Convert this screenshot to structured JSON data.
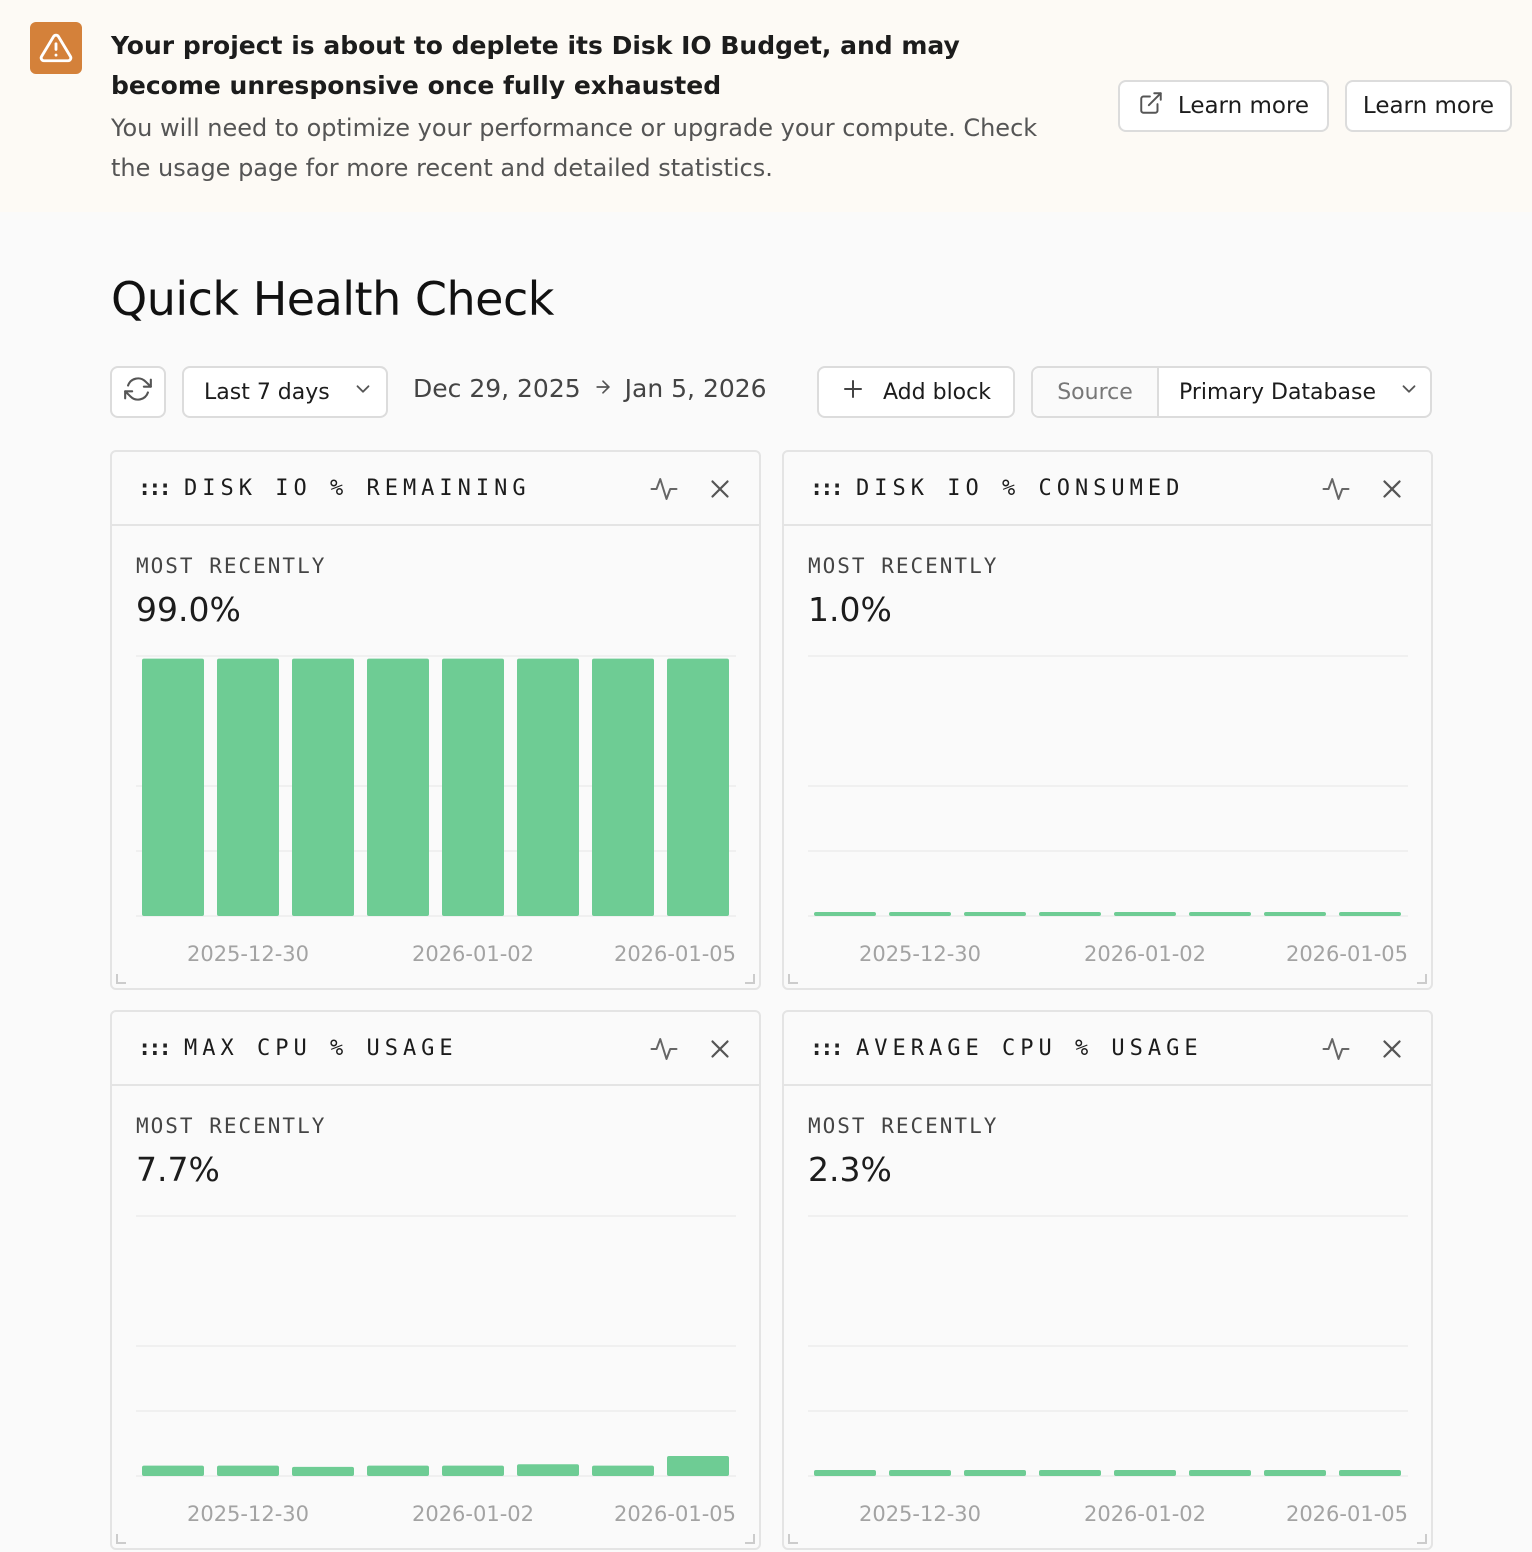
{
  "banner": {
    "title": "Your project is about to deplete its Disk IO Budget, and may become unresponsive once fully exhausted",
    "body": "You will need to optimize your performance or upgrade your compute. Check the usage page for more recent and detailed statistics.",
    "learn_more_1": "Learn more",
    "learn_more_2": "Learn more",
    "accent": "#d4813a"
  },
  "page": {
    "title": "Quick Health Check"
  },
  "toolbar": {
    "range_label": "Last 7 days",
    "date_start": "Dec 29, 2025",
    "date_end": "Jan 5, 2026",
    "add_block": "Add block",
    "source_label": "Source",
    "source_value": "Primary Database"
  },
  "cards": [
    {
      "title": "DISK IO % REMAINING",
      "caption": "MOST RECENTLY",
      "value": "99.0%"
    },
    {
      "title": "DISK IO % CONSUMED",
      "caption": "MOST RECENTLY",
      "value": "1.0%"
    },
    {
      "title": "MAX CPU % USAGE",
      "caption": "MOST RECENTLY",
      "value": "7.7%"
    },
    {
      "title": "AVERAGE CPU % USAGE",
      "caption": "MOST RECENTLY",
      "value": "2.3%"
    }
  ],
  "chart_data": [
    {
      "type": "bar",
      "x": [
        "2025-12-29",
        "2025-12-30",
        "2025-12-31",
        "2026-01-01",
        "2026-01-02",
        "2026-01-03",
        "2026-01-04",
        "2026-01-05"
      ],
      "values": [
        99,
        99,
        99,
        99,
        99,
        99,
        99,
        99
      ],
      "ylim": [
        0,
        100
      ],
      "ticks": [
        "2025-12-30",
        "2026-01-02",
        "2026-01-05"
      ],
      "color": "#6ecc94"
    },
    {
      "type": "bar",
      "x": [
        "2025-12-29",
        "2025-12-30",
        "2025-12-31",
        "2026-01-01",
        "2026-01-02",
        "2026-01-03",
        "2026-01-04",
        "2026-01-05"
      ],
      "values": [
        1,
        1,
        1,
        1,
        1,
        1,
        1,
        1
      ],
      "ylim": [
        0,
        100
      ],
      "ticks": [
        "2025-12-30",
        "2026-01-02",
        "2026-01-05"
      ],
      "color": "#6ecc94"
    },
    {
      "type": "bar",
      "x": [
        "2025-12-29",
        "2025-12-30",
        "2025-12-31",
        "2026-01-01",
        "2026-01-02",
        "2026-01-03",
        "2026-01-04",
        "2026-01-05"
      ],
      "values": [
        4,
        4,
        3.5,
        4,
        4,
        4.5,
        4,
        7.7
      ],
      "ylim": [
        0,
        100
      ],
      "ticks": [
        "2025-12-30",
        "2026-01-02",
        "2026-01-05"
      ],
      "color": "#6ecc94"
    },
    {
      "type": "bar",
      "x": [
        "2025-12-29",
        "2025-12-30",
        "2025-12-31",
        "2026-01-01",
        "2026-01-02",
        "2026-01-03",
        "2026-01-04",
        "2026-01-05"
      ],
      "values": [
        2.3,
        2.3,
        2.3,
        2.3,
        2.3,
        2.3,
        2.3,
        2.3
      ],
      "ylim": [
        0,
        100
      ],
      "ticks": [
        "2025-12-30",
        "2026-01-02",
        "2026-01-05"
      ],
      "color": "#6ecc94"
    }
  ]
}
